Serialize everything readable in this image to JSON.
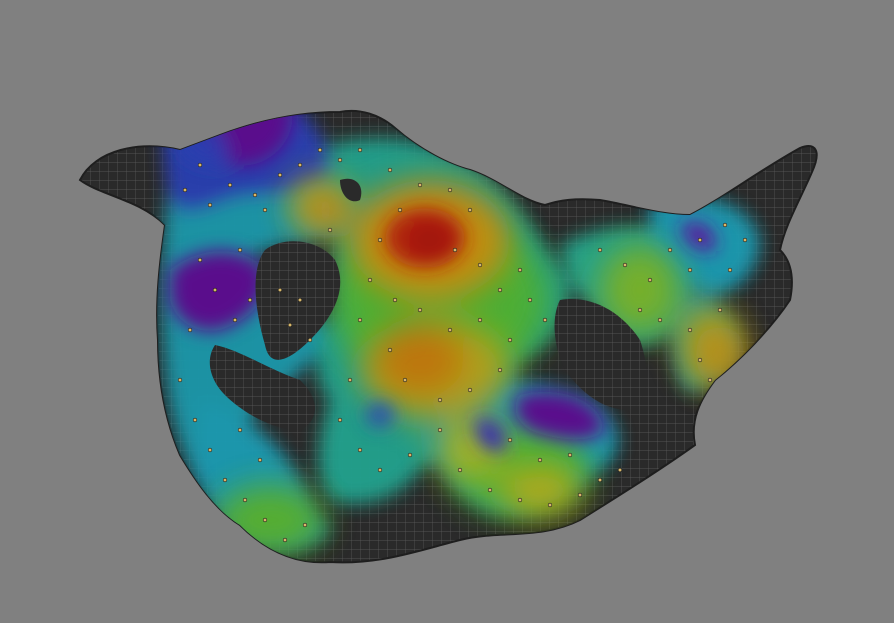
{
  "viewport": {
    "background_color": "#808080",
    "mesh_color": "#2b2b2b",
    "grid_color": "#6a6a6a"
  },
  "colormap": {
    "scale": [
      "#5a0f8c",
      "#2a3fb0",
      "#1f9ab0",
      "#25a58a",
      "#4fb030",
      "#a8b020",
      "#c07a10",
      "#b01c08"
    ],
    "scale_description_values": [
      "purple",
      "blue",
      "cyan",
      "teal",
      "green",
      "yellow",
      "orange",
      "red"
    ]
  },
  "point_marker_color": "#d9b86a"
}
